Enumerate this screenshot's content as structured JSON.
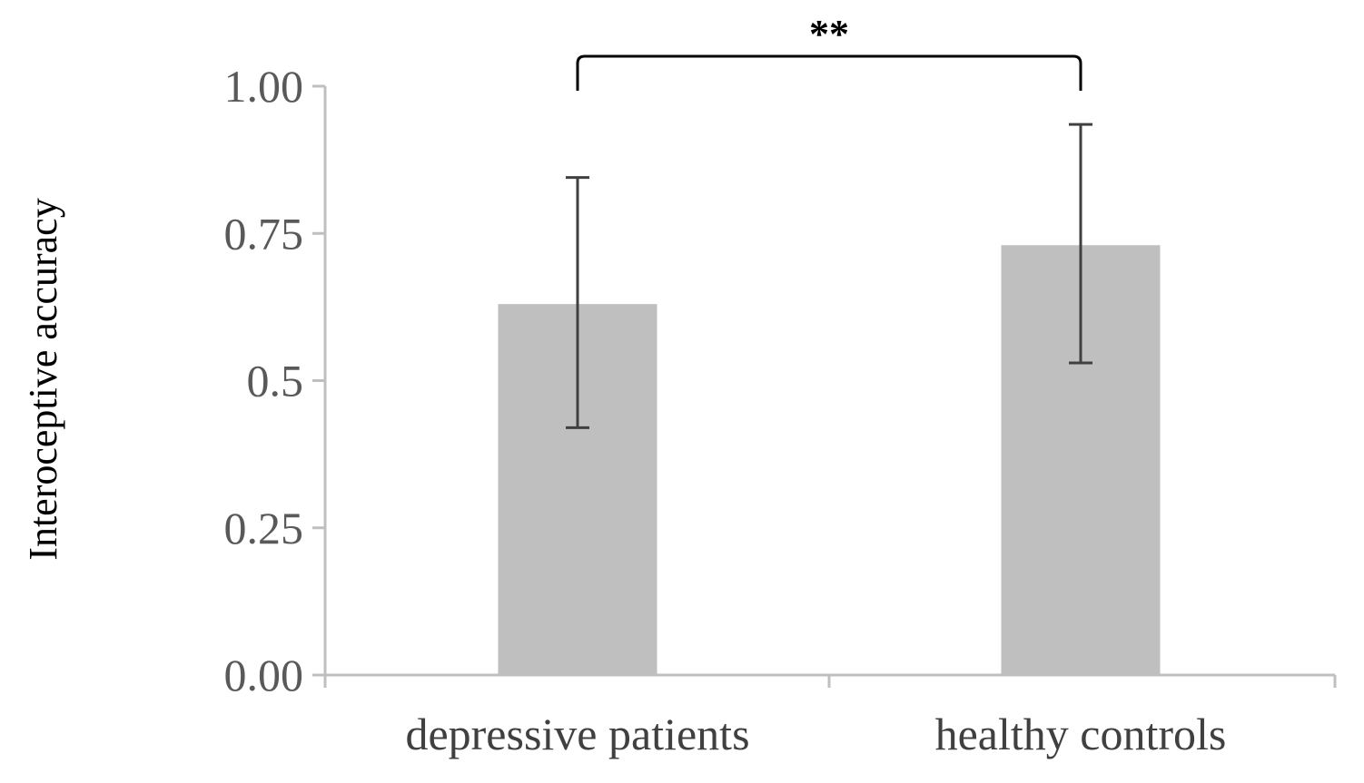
{
  "chart_data": {
    "type": "bar",
    "title": "",
    "xlabel": "",
    "ylabel": "Interoceptive accuracy",
    "categories": [
      "depressive patients",
      "healthy controls"
    ],
    "values": [
      0.63,
      0.73
    ],
    "error_upper": [
      0.845,
      0.935
    ],
    "error_lower": [
      0.42,
      0.53
    ],
    "ylim": [
      0,
      1
    ],
    "yticks": [
      0,
      0.25,
      0.5,
      0.75,
      1
    ],
    "ytick_labels": [
      "0.00",
      "0.25",
      "0.5",
      "0.75",
      "1.00"
    ],
    "ytick_label_colors": [
      "#7f9fc6",
      "#595959",
      "#595959",
      "#595959",
      "#d4a373"
    ],
    "grid": false,
    "legend": "none",
    "significance": {
      "from": "depressive patients",
      "to": "healthy controls",
      "label": "**"
    },
    "colors": {
      "bar": "#bfbfbf",
      "axis": "#bfbfbf",
      "error_bar": "#404040",
      "bracket": "#000000"
    }
  }
}
